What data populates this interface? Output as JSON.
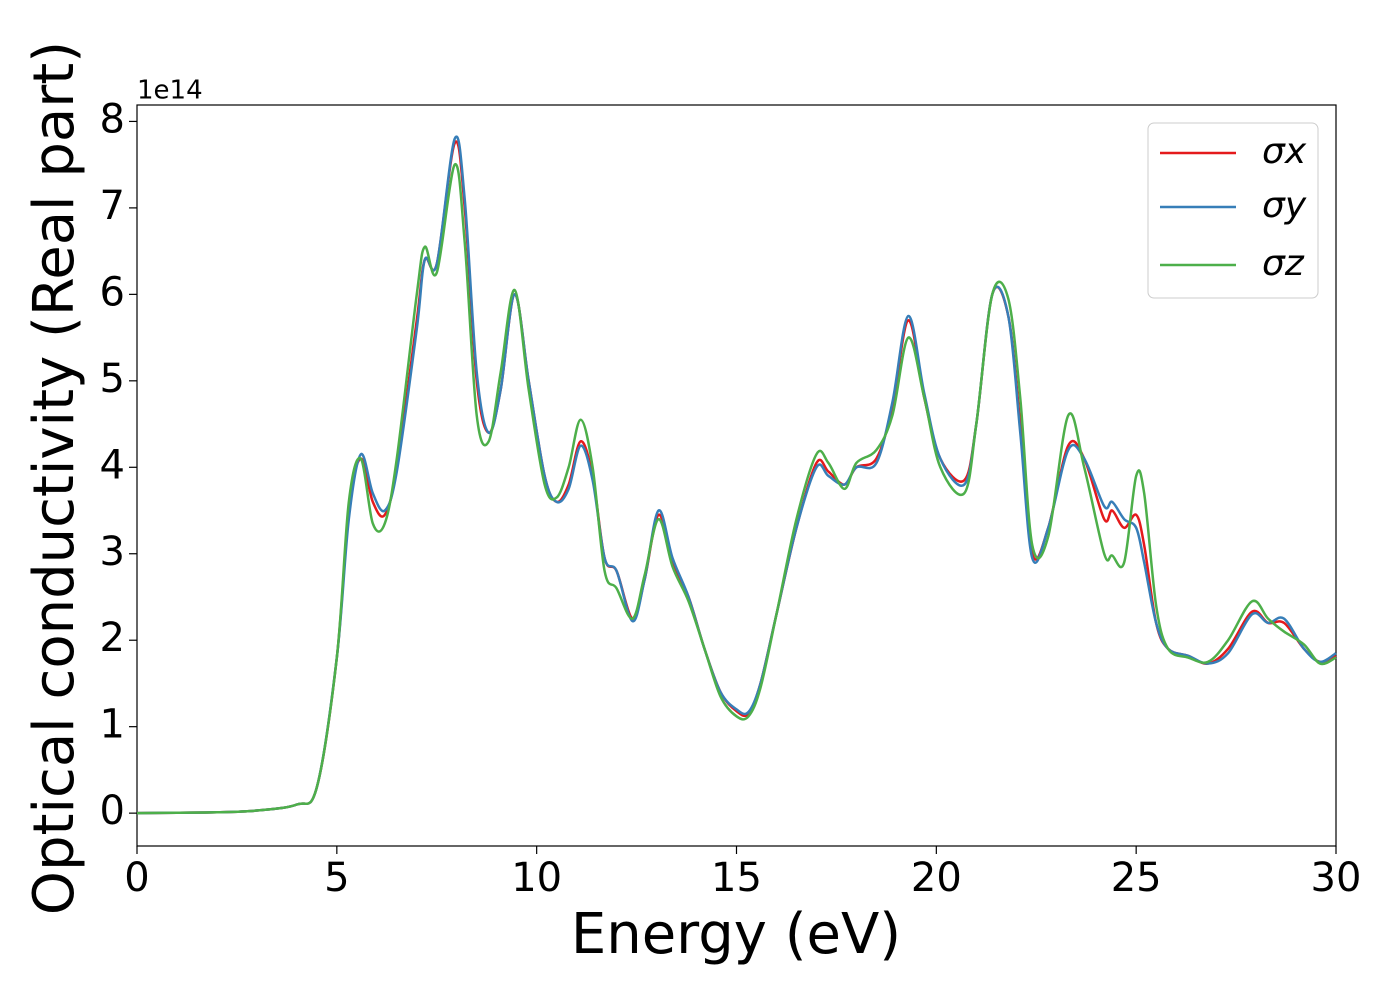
{
  "chart_data": {
    "type": "line",
    "x_label": "Energy (eV)",
    "y_label": "Optical conductivity (Real part)",
    "y_multiplier": "1e14",
    "xlim": [
      0,
      30
    ],
    "xticks": [
      0,
      5,
      10,
      15,
      20,
      25,
      30
    ],
    "ylim": [
      -0.38,
      8.19
    ],
    "yticks": [
      0,
      1,
      2,
      3,
      4,
      5,
      6,
      7,
      8
    ],
    "legend": "upper right",
    "x": [
      0,
      1,
      2,
      3,
      4,
      4.5,
      5,
      5.3,
      5.6,
      5.9,
      6.2,
      6.5,
      7.0,
      7.2,
      7.5,
      7.95,
      8.2,
      8.5,
      8.8,
      9.1,
      9.45,
      9.8,
      10.2,
      10.5,
      10.8,
      11.1,
      11.4,
      11.7,
      12.0,
      12.4,
      12.7,
      13.05,
      13.4,
      13.8,
      14.2,
      14.6,
      15.0,
      15.3,
      15.6,
      16.0,
      16.5,
      17.0,
      17.3,
      17.7,
      18.0,
      18.5,
      18.9,
      19.3,
      19.7,
      20.1,
      20.7,
      21.0,
      21.4,
      21.8,
      22.1,
      22.4,
      22.8,
      23.3,
      23.7,
      24.2,
      24.4,
      24.7,
      25.0,
      25.2,
      25.5,
      25.8,
      26.3,
      26.8,
      27.3,
      27.9,
      28.3,
      28.7,
      29.2,
      29.6,
      30
    ],
    "series": [
      {
        "name": "σx",
        "color": "#e41a1c",
        "values": [
          0,
          0.005,
          0.01,
          0.03,
          0.1,
          0.3,
          1.8,
          3.5,
          4.1,
          3.6,
          3.45,
          4.0,
          5.7,
          6.4,
          6.35,
          7.75,
          7.0,
          5.0,
          4.4,
          4.9,
          6.0,
          5.0,
          3.9,
          3.6,
          3.8,
          4.3,
          3.9,
          2.95,
          2.8,
          2.25,
          2.7,
          3.45,
          2.9,
          2.5,
          1.9,
          1.4,
          1.18,
          1.15,
          1.5,
          2.3,
          3.3,
          4.05,
          3.95,
          3.8,
          4.0,
          4.1,
          4.7,
          5.7,
          4.8,
          4.1,
          3.85,
          4.5,
          6.0,
          5.75,
          4.5,
          3.0,
          3.3,
          4.25,
          4.1,
          3.4,
          3.5,
          3.3,
          3.45,
          3.1,
          2.2,
          1.9,
          1.82,
          1.73,
          1.9,
          2.33,
          2.2,
          2.2,
          1.9,
          1.75,
          1.82
        ]
      },
      {
        "name": "σy",
        "color": "#377eb8",
        "values": [
          0,
          0.005,
          0.01,
          0.03,
          0.1,
          0.3,
          1.8,
          3.4,
          4.15,
          3.7,
          3.5,
          3.95,
          5.6,
          6.4,
          6.35,
          7.8,
          7.1,
          5.1,
          4.4,
          4.9,
          6.0,
          5.0,
          3.9,
          3.6,
          3.75,
          4.25,
          3.85,
          2.95,
          2.8,
          2.22,
          2.7,
          3.5,
          2.95,
          2.5,
          1.9,
          1.4,
          1.2,
          1.17,
          1.5,
          2.3,
          3.3,
          4.0,
          3.9,
          3.8,
          4.0,
          4.05,
          4.75,
          5.75,
          4.85,
          4.1,
          3.8,
          4.5,
          6.0,
          5.75,
          4.4,
          2.95,
          3.3,
          4.2,
          4.1,
          3.55,
          3.6,
          3.4,
          3.3,
          2.9,
          2.2,
          1.9,
          1.82,
          1.73,
          1.85,
          2.3,
          2.2,
          2.25,
          1.9,
          1.75,
          1.85
        ]
      },
      {
        "name": "σz",
        "color": "#4daf4a",
        "values": [
          0,
          0.005,
          0.01,
          0.03,
          0.1,
          0.3,
          1.8,
          3.6,
          4.1,
          3.35,
          3.35,
          4.1,
          6.0,
          6.55,
          6.25,
          7.5,
          6.6,
          4.6,
          4.3,
          5.1,
          6.05,
          4.9,
          3.8,
          3.65,
          4.0,
          4.55,
          4.0,
          2.8,
          2.6,
          2.25,
          2.75,
          3.4,
          2.85,
          2.45,
          1.9,
          1.35,
          1.12,
          1.12,
          1.45,
          2.3,
          3.4,
          4.15,
          4.05,
          3.75,
          4.05,
          4.2,
          4.6,
          5.5,
          4.8,
          4.0,
          3.7,
          4.5,
          6.0,
          5.95,
          4.8,
          3.1,
          3.2,
          4.6,
          4.0,
          3.0,
          2.98,
          2.9,
          3.9,
          3.7,
          2.4,
          1.9,
          1.8,
          1.75,
          2.0,
          2.45,
          2.25,
          2.1,
          1.95,
          1.73,
          1.8
        ]
      }
    ]
  }
}
